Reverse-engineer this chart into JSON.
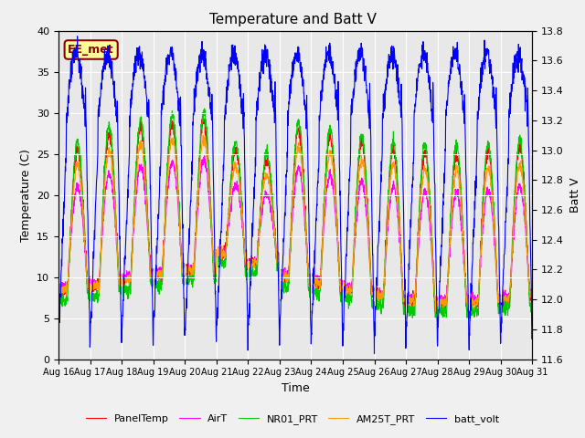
{
  "title": "Temperature and Batt V",
  "xlabel": "Time",
  "ylabel_left": "Temperature (C)",
  "ylabel_right": "Batt V",
  "annotation": "EE_met",
  "ylim_left": [
    0,
    40
  ],
  "ylim_right": [
    11.6,
    13.8
  ],
  "n_days": 15,
  "colors": {
    "PanelTemp": "#ff0000",
    "AirT": "#ff00ff",
    "NR01_PRT": "#00cc00",
    "AM25T_PRT": "#ff9900",
    "batt_volt": "#0000ff"
  },
  "legend_labels": [
    "PanelTemp",
    "AirT",
    "NR01_PRT",
    "AM25T_PRT",
    "batt_volt"
  ],
  "background_color": "#e8e8e8",
  "grid_color": "#ffffff",
  "tick_labels": [
    "Aug 16",
    "Aug 17",
    "Aug 18",
    "Aug 19",
    "Aug 20",
    "Aug 21",
    "Aug 22",
    "Aug 23",
    "Aug 24",
    "Aug 25",
    "Aug 26",
    "Aug 27",
    "Aug 28",
    "Aug 29",
    "Aug 30",
    "Aug 31"
  ],
  "yticks_left": [
    0,
    5,
    10,
    15,
    20,
    25,
    30,
    35,
    40
  ],
  "yticks_right": [
    11.6,
    11.8,
    12.0,
    12.2,
    12.4,
    12.6,
    12.8,
    13.0,
    13.2,
    13.4,
    13.6,
    13.8
  ]
}
